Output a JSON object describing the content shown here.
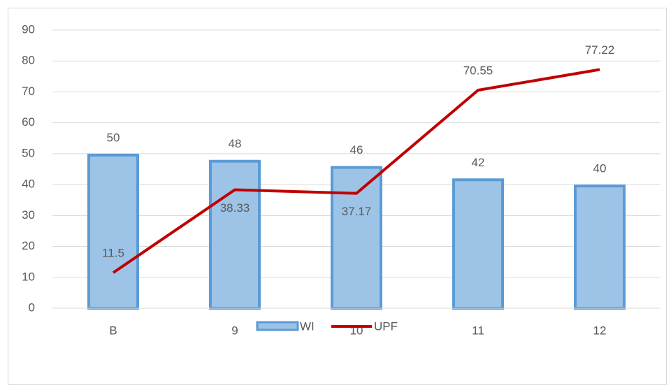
{
  "chart_data": {
    "type": "bar",
    "categories": [
      "B",
      "9",
      "10",
      "11",
      "12"
    ],
    "series": [
      {
        "name": "WI",
        "type": "bar",
        "color": "#9dc3e6",
        "edge_color": "#5b9bd5",
        "values": [
          50,
          48,
          46,
          42,
          40
        ]
      },
      {
        "name": "UPF",
        "type": "line",
        "color": "#c00000",
        "values": [
          11.5,
          38.33,
          37.17,
          70.55,
          77.22
        ]
      }
    ],
    "ylim": [
      0,
      90
    ],
    "yticks": [
      0,
      10,
      20,
      30,
      40,
      50,
      60,
      70,
      80,
      90
    ],
    "grid": true,
    "legend": "bottom"
  }
}
